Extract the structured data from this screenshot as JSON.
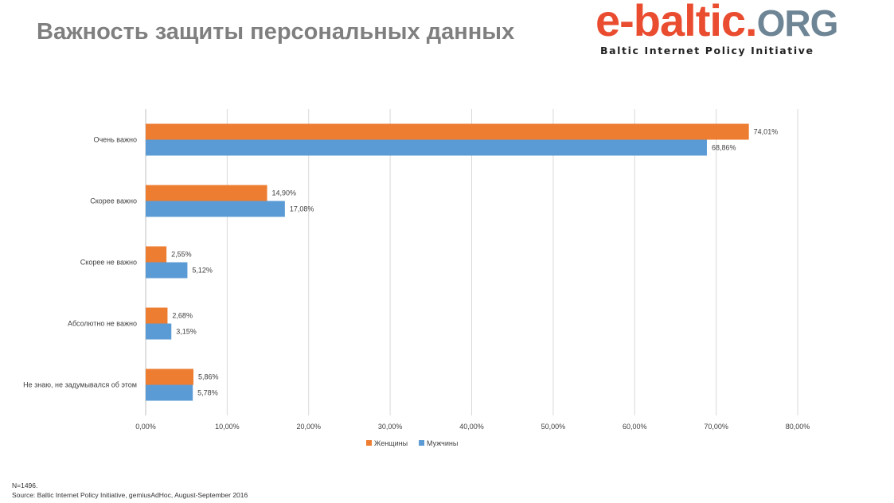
{
  "title": "Важность защиты персональных данных",
  "logo": {
    "main": "e-baltic.",
    "org": "ORG",
    "tagline": "Baltic Internet Policy Initiative"
  },
  "chart_data": {
    "type": "bar",
    "orientation": "horizontal",
    "title": "Важность защиты персональных данных",
    "categories": [
      "Очень важно",
      "Скорее важно",
      "Скорее не важно",
      "Абсолютно не важно",
      "Не знаю, не задумывался об этом"
    ],
    "series": [
      {
        "name": "Женщины",
        "color": "#ed7d31",
        "values": [
          74.01,
          14.9,
          2.55,
          2.68,
          5.86
        ],
        "labels": [
          "74,01%",
          "14,90%",
          "2,55%",
          "2,68%",
          "5,86%"
        ]
      },
      {
        "name": "Мужчины",
        "color": "#5b9bd5",
        "values": [
          68.86,
          17.08,
          5.12,
          3.15,
          5.78
        ],
        "labels": [
          "68,86%",
          "17,08%",
          "5,12%",
          "3,15%",
          "5,78%"
        ]
      }
    ],
    "xlim": [
      0,
      80
    ],
    "xticks": [
      "0,00%",
      "10,00%",
      "20,00%",
      "30,00%",
      "40,00%",
      "50,00%",
      "60,00%",
      "70,00%",
      "80,00%"
    ],
    "grid": true,
    "legend": "bottom"
  },
  "footer": {
    "n": "N=1496.",
    "source": "Source: Baltic Internet Policy Initiative,  gemiusAdHoc, August-September 2016"
  }
}
